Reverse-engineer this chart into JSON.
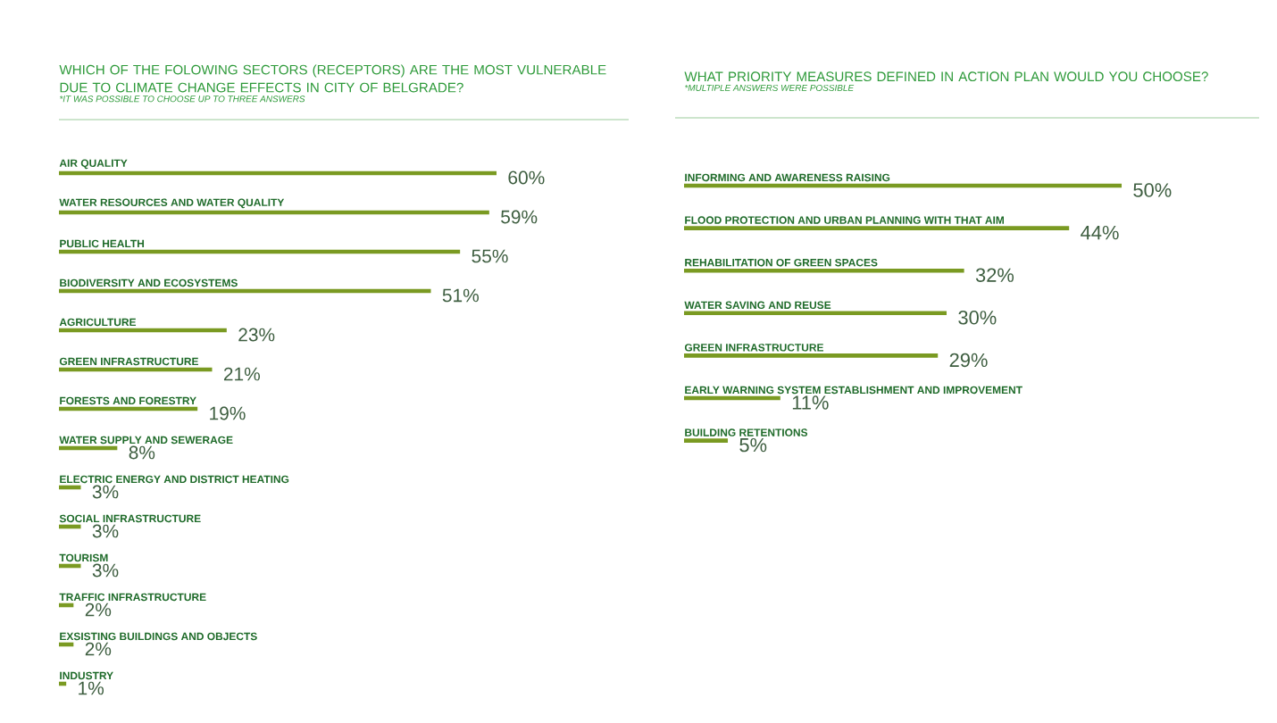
{
  "chart_data": [
    {
      "type": "bar",
      "orientation": "horizontal",
      "title": "WHICH OF THE FOLOWING SECTORS (RECEPTORS) ARE THE MOST VULNERABLE DUE TO CLIMATE CHANGE EFFECTS IN CITY OF BELGRADE?",
      "subtitle": "*IT WAS POSSIBLE TO CHOOSE  UP TO THREE ANSWERS",
      "color": "#7a9a22",
      "categories": [
        "AIR QUALITY",
        "WATER RESOURCES AND WATER QUALITY",
        "PUBLIC HEALTH",
        "BIODIVERSITY AND ECOSYSTEMS",
        "AGRICULTURE",
        "GREEN INFRASTRUCTURE",
        "FORESTS AND FORESTRY",
        "WATER SUPPLY AND SEWERAGE",
        "ELECTRIC ENERGY AND DISTRICT HEATING",
        "SOCIAL INFRASTRUCTURE",
        "TOURISM",
        "TRAFFIC INFRASTRUCTURE",
        "EXSISTING BUILDINGS AND OBJECTS",
        "INDUSTRY"
      ],
      "values": [
        60,
        59,
        55,
        51,
        23,
        21,
        19,
        8,
        3,
        3,
        3,
        2,
        2,
        1
      ],
      "value_labels": [
        "60%",
        "59%",
        "55%",
        "51%",
        "23%",
        "21%",
        "19%",
        "8%",
        "3%",
        "3%",
        "3%",
        "2%",
        "2%",
        "1%"
      ]
    },
    {
      "type": "bar",
      "orientation": "horizontal",
      "title": "WHAT PRIORITY MEASURES DEFINED IN ACTION PLAN WOULD YOU CHOOSE?",
      "subtitle": "*MULTIPLE ANSWERS WERE POSSIBLE",
      "color": "#7a9a22",
      "categories": [
        "INFORMING AND AWARENESS RAISING",
        "FLOOD PROTECTION AND URBAN PLANNING WITH THAT AIM",
        "REHABILITATION OF GREEN SPACES",
        "WATER SAVING AND REUSE",
        "GREEN INFRASTRUCTURE",
        "EARLY WARNING SYSTEM ESTABLISHMENT AND IMPROVEMENT",
        "BUILDING RETENTIONS"
      ],
      "values": [
        50,
        44,
        32,
        30,
        29,
        11,
        5
      ],
      "value_labels": [
        "50%",
        "44%",
        "32%",
        "30%",
        "29%",
        "11%",
        "5%"
      ]
    }
  ]
}
